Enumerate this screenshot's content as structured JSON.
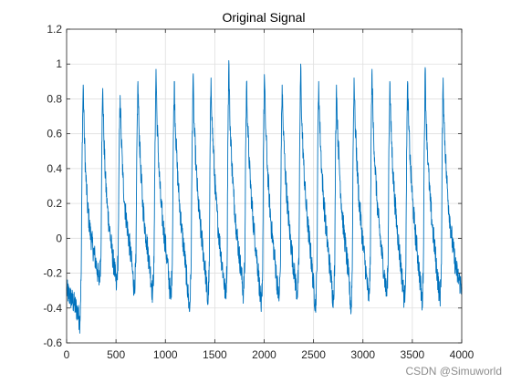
{
  "chart_data": {
    "type": "line",
    "title": "Original Signal",
    "xlabel": "",
    "ylabel": "",
    "xlim": [
      0,
      4000
    ],
    "ylim": [
      -0.6,
      1.2
    ],
    "xticks": [
      0,
      500,
      1000,
      1500,
      2000,
      2500,
      3000,
      3500,
      4000
    ],
    "yticks": [
      -0.6,
      -0.4,
      -0.2,
      0,
      0.2,
      0.4,
      0.6,
      0.8,
      1,
      1.2
    ],
    "xtick_labels": [
      "0",
      "500",
      "1000",
      "1500",
      "2000",
      "2500",
      "3000",
      "3500",
      "4000"
    ],
    "ytick_labels": [
      "-0.6",
      "-0.4",
      "-0.2",
      "0",
      "0.2",
      "0.4",
      "0.6",
      "0.8",
      "1",
      "1.2"
    ],
    "grid": true,
    "series": [
      {
        "color": "#0072BD",
        "points": [
          [
            0,
            -0.3
          ],
          [
            40,
            -0.34
          ],
          [
            80,
            -0.38
          ],
          [
            110,
            -0.42
          ],
          [
            135,
            -0.48
          ],
          [
            148,
            -0.2
          ],
          [
            158,
            0.55
          ],
          [
            168,
            0.88
          ],
          [
            178,
            0.62
          ],
          [
            192,
            0.38
          ],
          [
            210,
            0.2
          ],
          [
            235,
            0.05
          ],
          [
            265,
            -0.05
          ],
          [
            290,
            -0.12
          ],
          [
            310,
            -0.18
          ],
          [
            330,
            -0.25
          ],
          [
            348,
            -0.1
          ],
          [
            356,
            0.55
          ],
          [
            366,
            0.86
          ],
          [
            376,
            0.6
          ],
          [
            392,
            0.35
          ],
          [
            412,
            0.18
          ],
          [
            435,
            0.05
          ],
          [
            460,
            -0.08
          ],
          [
            485,
            -0.18
          ],
          [
            505,
            -0.28
          ],
          [
            522,
            -0.1
          ],
          [
            532,
            0.5
          ],
          [
            542,
            0.82
          ],
          [
            552,
            0.6
          ],
          [
            570,
            0.35
          ],
          [
            590,
            0.18
          ],
          [
            615,
            0.06
          ],
          [
            640,
            -0.05
          ],
          [
            665,
            -0.18
          ],
          [
            685,
            -0.3
          ],
          [
            702,
            -0.14
          ],
          [
            712,
            0.55
          ],
          [
            722,
            0.9
          ],
          [
            732,
            0.65
          ],
          [
            750,
            0.4
          ],
          [
            770,
            0.2
          ],
          [
            795,
            0.05
          ],
          [
            820,
            -0.06
          ],
          [
            845,
            -0.18
          ],
          [
            870,
            -0.32
          ],
          [
            885,
            -0.14
          ],
          [
            895,
            0.55
          ],
          [
            905,
            0.97
          ],
          [
            915,
            0.68
          ],
          [
            935,
            0.4
          ],
          [
            955,
            0.2
          ],
          [
            980,
            0.06
          ],
          [
            1005,
            -0.06
          ],
          [
            1030,
            -0.2
          ],
          [
            1055,
            -0.35
          ],
          [
            1070,
            -0.15
          ],
          [
            1080,
            0.55
          ],
          [
            1090,
            0.9
          ],
          [
            1100,
            0.66
          ],
          [
            1120,
            0.4
          ],
          [
            1140,
            0.22
          ],
          [
            1165,
            0.05
          ],
          [
            1195,
            -0.1
          ],
          [
            1220,
            -0.26
          ],
          [
            1245,
            -0.42
          ],
          [
            1260,
            -0.18
          ],
          [
            1270,
            0.5
          ],
          [
            1280,
            0.93
          ],
          [
            1290,
            0.66
          ],
          [
            1310,
            0.42
          ],
          [
            1330,
            0.22
          ],
          [
            1355,
            0.06
          ],
          [
            1380,
            -0.06
          ],
          [
            1410,
            -0.22
          ],
          [
            1430,
            -0.38
          ],
          [
            1445,
            -0.16
          ],
          [
            1452,
            0.5
          ],
          [
            1462,
            0.92
          ],
          [
            1472,
            0.68
          ],
          [
            1492,
            0.42
          ],
          [
            1512,
            0.22
          ],
          [
            1535,
            0.06
          ],
          [
            1560,
            -0.08
          ],
          [
            1585,
            -0.2
          ],
          [
            1610,
            -0.34
          ],
          [
            1625,
            -0.15
          ],
          [
            1632,
            0.55
          ],
          [
            1642,
            1.02
          ],
          [
            1652,
            0.7
          ],
          [
            1672,
            0.44
          ],
          [
            1692,
            0.24
          ],
          [
            1715,
            0.08
          ],
          [
            1740,
            -0.06
          ],
          [
            1765,
            -0.18
          ],
          [
            1790,
            -0.32
          ],
          [
            1805,
            -0.14
          ],
          [
            1812,
            0.5
          ],
          [
            1822,
            0.9
          ],
          [
            1832,
            0.66
          ],
          [
            1852,
            0.4
          ],
          [
            1872,
            0.22
          ],
          [
            1895,
            0.06
          ],
          [
            1920,
            -0.08
          ],
          [
            1945,
            -0.22
          ],
          [
            1970,
            -0.42
          ],
          [
            1985,
            -0.18
          ],
          [
            1992,
            0.5
          ],
          [
            2002,
            0.94
          ],
          [
            2012,
            0.68
          ],
          [
            2032,
            0.42
          ],
          [
            2052,
            0.22
          ],
          [
            2075,
            0.05
          ],
          [
            2100,
            -0.08
          ],
          [
            2125,
            -0.22
          ],
          [
            2150,
            -0.36
          ],
          [
            2165,
            -0.16
          ],
          [
            2172,
            0.5
          ],
          [
            2182,
            0.88
          ],
          [
            2192,
            0.64
          ],
          [
            2212,
            0.4
          ],
          [
            2232,
            0.22
          ],
          [
            2255,
            0.06
          ],
          [
            2280,
            -0.08
          ],
          [
            2305,
            -0.2
          ],
          [
            2335,
            -0.32
          ],
          [
            2352,
            -0.15
          ],
          [
            2360,
            0.55
          ],
          [
            2370,
            1.0
          ],
          [
            2380,
            0.68
          ],
          [
            2400,
            0.42
          ],
          [
            2420,
            0.22
          ],
          [
            2445,
            0.06
          ],
          [
            2470,
            -0.08
          ],
          [
            2495,
            -0.24
          ],
          [
            2520,
            -0.4
          ],
          [
            2535,
            -0.18
          ],
          [
            2542,
            0.5
          ],
          [
            2552,
            0.9
          ],
          [
            2562,
            0.66
          ],
          [
            2582,
            0.4
          ],
          [
            2602,
            0.22
          ],
          [
            2625,
            0.06
          ],
          [
            2650,
            -0.08
          ],
          [
            2675,
            -0.22
          ],
          [
            2700,
            -0.36
          ],
          [
            2715,
            -0.15
          ],
          [
            2722,
            0.5
          ],
          [
            2732,
            0.88
          ],
          [
            2742,
            0.64
          ],
          [
            2762,
            0.4
          ],
          [
            2782,
            0.2
          ],
          [
            2805,
            0.05
          ],
          [
            2830,
            -0.08
          ],
          [
            2855,
            -0.22
          ],
          [
            2880,
            -0.42
          ],
          [
            2892,
            -0.18
          ],
          [
            2900,
            0.5
          ],
          [
            2910,
            0.92
          ],
          [
            2920,
            0.68
          ],
          [
            2940,
            0.42
          ],
          [
            2960,
            0.22
          ],
          [
            2985,
            0.06
          ],
          [
            3010,
            -0.08
          ],
          [
            3035,
            -0.22
          ],
          [
            3060,
            -0.36
          ],
          [
            3075,
            -0.15
          ],
          [
            3082,
            0.55
          ],
          [
            3092,
            0.97
          ],
          [
            3102,
            0.68
          ],
          [
            3122,
            0.42
          ],
          [
            3142,
            0.22
          ],
          [
            3165,
            0.06
          ],
          [
            3190,
            -0.08
          ],
          [
            3215,
            -0.2
          ],
          [
            3240,
            -0.33
          ],
          [
            3255,
            -0.15
          ],
          [
            3262,
            0.5
          ],
          [
            3272,
            0.9
          ],
          [
            3282,
            0.66
          ],
          [
            3302,
            0.4
          ],
          [
            3322,
            0.22
          ],
          [
            3345,
            0.06
          ],
          [
            3370,
            -0.08
          ],
          [
            3395,
            -0.22
          ],
          [
            3420,
            -0.36
          ],
          [
            3435,
            -0.15
          ],
          [
            3442,
            0.5
          ],
          [
            3452,
            0.9
          ],
          [
            3462,
            0.66
          ],
          [
            3482,
            0.4
          ],
          [
            3502,
            0.22
          ],
          [
            3525,
            0.06
          ],
          [
            3550,
            -0.08
          ],
          [
            3575,
            -0.22
          ],
          [
            3600,
            -0.38
          ],
          [
            3612,
            -0.15
          ],
          [
            3620,
            0.5
          ],
          [
            3630,
            0.98
          ],
          [
            3640,
            0.68
          ],
          [
            3660,
            0.42
          ],
          [
            3680,
            0.22
          ],
          [
            3705,
            0.06
          ],
          [
            3730,
            -0.08
          ],
          [
            3755,
            -0.22
          ],
          [
            3780,
            -0.35
          ],
          [
            3795,
            -0.15
          ],
          [
            3802,
            0.5
          ],
          [
            3812,
            0.92
          ],
          [
            3822,
            0.66
          ],
          [
            3842,
            0.4
          ],
          [
            3862,
            0.22
          ],
          [
            3885,
            0.08
          ],
          [
            3910,
            -0.05
          ],
          [
            3935,
            -0.15
          ],
          [
            3960,
            -0.22
          ],
          [
            3980,
            -0.25
          ],
          [
            4000,
            -0.28
          ]
        ]
      }
    ]
  },
  "watermark": "CSDN @Simuworld"
}
